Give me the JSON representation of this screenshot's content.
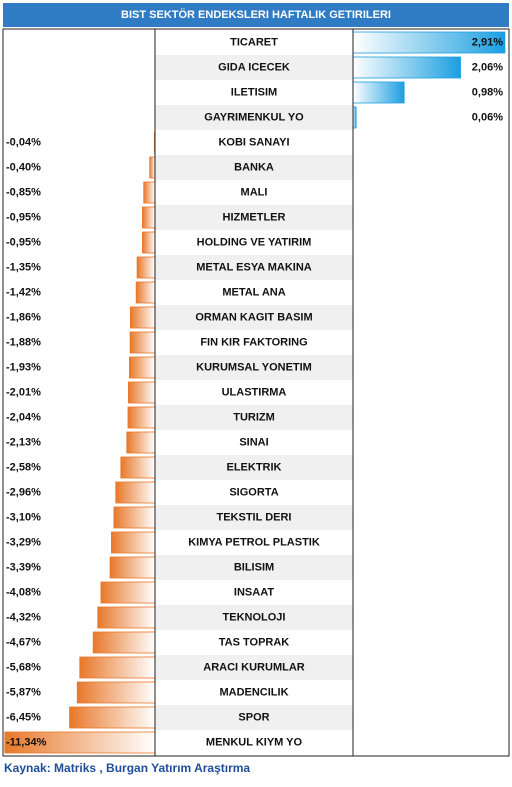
{
  "chart_data": {
    "type": "diverging-bar",
    "title": "BIST SEKTÖR ENDEKSLERI HAFTALIK GETIRILERI",
    "source": "Kaynak: Matriks , Burgan Yatırım Araştırma",
    "categories": [
      "TICARET",
      "GIDA ICECEK",
      "ILETISIM",
      "GAYRIMENKUL YO",
      "KOBI SANAYI",
      "BANKA",
      "MALI",
      "HIZMETLER",
      "HOLDING VE YATIRIM",
      "METAL ESYA MAKINA",
      "METAL ANA",
      "ORMAN KAGIT BASIM",
      "FIN KIR FAKTORING",
      "KURUMSAL YONETIM",
      "ULASTIRMA",
      "TURIZM",
      "SINAI",
      "ELEKTRIK",
      "SIGORTA",
      "TEKSTIL DERI",
      "KIMYA PETROL PLASTIK",
      "BILISIM",
      "INSAAT",
      "TEKNOLOJI",
      "TAS TOPRAK",
      "ARACI KURUMLAR",
      "MADENCILIK",
      "SPOR",
      "MENKUL KIYM YO"
    ],
    "values": [
      2.91,
      2.06,
      0.98,
      0.06,
      -0.04,
      -0.4,
      -0.85,
      -0.95,
      -0.95,
      -1.35,
      -1.42,
      -1.86,
      -1.88,
      -1.93,
      -2.01,
      -2.04,
      -2.13,
      -2.58,
      -2.96,
      -3.1,
      -3.29,
      -3.39,
      -4.08,
      -4.32,
      -4.67,
      -5.68,
      -5.87,
      -6.45,
      -11.34
    ],
    "value_labels": [
      "2,91%",
      "2,06%",
      "0,98%",
      "0,06%",
      "-0,04%",
      "-0,40%",
      "-0,85%",
      "-0,95%",
      "-0,95%",
      "-1,35%",
      "-1,42%",
      "-1,86%",
      "-1,88%",
      "-1,93%",
      "-2,01%",
      "-2,04%",
      "-2,13%",
      "-2,58%",
      "-2,96%",
      "-3,10%",
      "-3,29%",
      "-3,39%",
      "-4,08%",
      "-4,32%",
      "-4,67%",
      "-5,68%",
      "-5,87%",
      "-6,45%",
      "-11,34%"
    ],
    "xlim_left": [
      -11.4,
      0
    ],
    "xlim_right": [
      0,
      2.95
    ],
    "positive_color": "#1c9fe0",
    "negative_color": "#e8782a"
  }
}
